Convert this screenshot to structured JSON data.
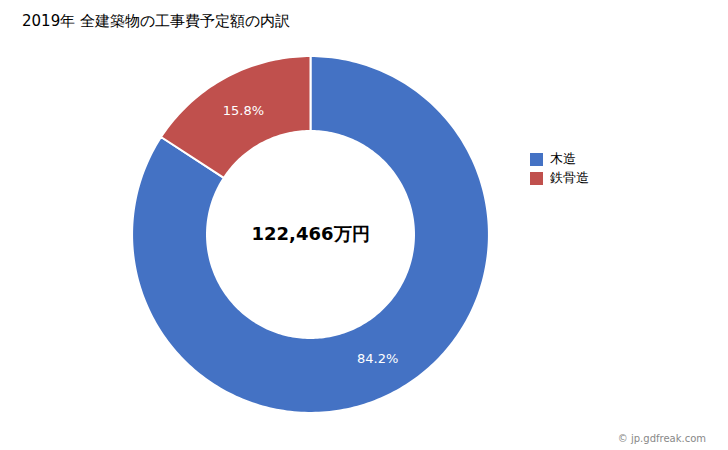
{
  "chart_data": {
    "type": "donut",
    "title": "2019年 全建築物の工事費予定額の内訳",
    "categories": [
      "木造",
      "鉄骨造"
    ],
    "values": [
      84.2,
      15.8
    ],
    "value_labels": [
      "84.2%",
      "15.8%"
    ],
    "colors": [
      "#4472C4",
      "#C0504D"
    ],
    "data_labels": true,
    "legend": "right",
    "annotations": [
      "122,466万円",
      "© jp.gdfreak.com"
    ]
  }
}
